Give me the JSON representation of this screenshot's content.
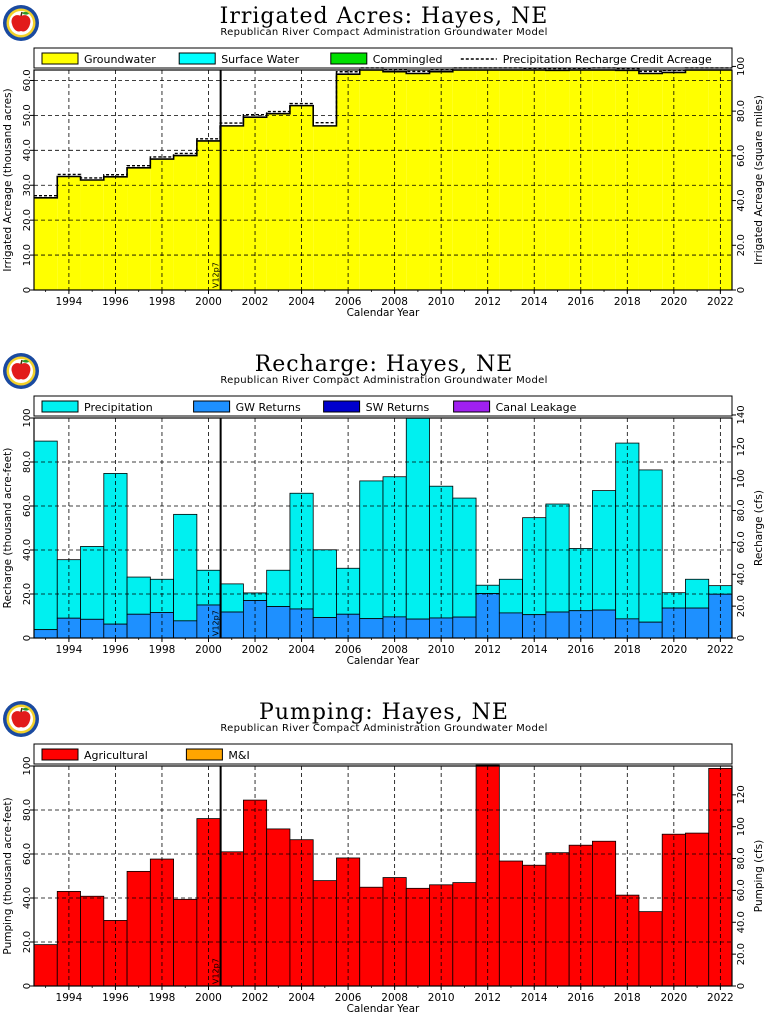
{
  "colors": {
    "groundwater": "#ffff00",
    "surface_water": "#00ffff",
    "commingled": "#00e000",
    "precipitation": "#00f0f0",
    "gw_returns": "#1e90ff",
    "sw_returns": "#0000cd",
    "canal_leakage": "#a020f0",
    "agricultural": "#ff0000",
    "mi": "#ffa500"
  },
  "icons": {
    "logo": "apple-seal-icon"
  },
  "chart_data": [
    {
      "type": "bar",
      "title": "Irrigated Acres: Hayes, NE",
      "subtitle": "Republican River Compact Administration Groundwater Model",
      "xlabel": "Calendar Year",
      "ylabel": "Irrigated Acreage (thousand acres)",
      "ylabel_right": "Irrigated Acreage (square miles)",
      "x_ticks": [
        "1994",
        "1996",
        "1998",
        "2000",
        "2002",
        "2004",
        "2006",
        "2008",
        "2010",
        "2012",
        "2014",
        "2016",
        "2018",
        "2020",
        "2022"
      ],
      "y_ticks": [
        "0",
        "10.0",
        "20.0",
        "30.0",
        "40.0",
        "50.0",
        "60.0"
      ],
      "y_ticks_right": [
        "0",
        "20.0",
        "40.0",
        "60.0",
        "80.0",
        "100"
      ],
      "ylim": [
        0,
        63
      ],
      "ylim_right": [
        0,
        98.4
      ],
      "marker_label": "V12p7",
      "marker_year": 2001,
      "legend": [
        {
          "label": "Groundwater",
          "color": "#ffff00",
          "kind": "box"
        },
        {
          "label": "Surface Water",
          "color": "#00ffff",
          "kind": "box"
        },
        {
          "label": "Commingled",
          "color": "#00e000",
          "kind": "box"
        },
        {
          "label": "Precipitation Recharge Credit Acreage",
          "kind": "dash"
        }
      ],
      "years": [
        1993,
        1994,
        1995,
        1996,
        1997,
        1998,
        1999,
        2000,
        2001,
        2002,
        2003,
        2004,
        2005,
        2006,
        2007,
        2008,
        2009,
        2010,
        2011,
        2012,
        2013,
        2014,
        2015,
        2016,
        2017,
        2018,
        2019,
        2020,
        2021,
        2022
      ],
      "series": [
        {
          "name": "Groundwater",
          "values": [
            26.4,
            32.5,
            31.5,
            32.4,
            35.0,
            37.5,
            38.5,
            42.7,
            47.0,
            49.5,
            50.5,
            52.8,
            47.0,
            61.8,
            63.0,
            62.5,
            62.0,
            62.5,
            63.1,
            63.8,
            63.4,
            63.0,
            62.9,
            63.0,
            63.2,
            62.9,
            62.0,
            62.3,
            63.4,
            63.8
          ]
        },
        {
          "name": "Precipitation Recharge Credit Acreage",
          "values": [
            27.0,
            33.1,
            32.1,
            33.0,
            35.6,
            38.1,
            39.1,
            43.3,
            47.8,
            50.2,
            51.1,
            53.4,
            47.9,
            62.5,
            63.6,
            63.1,
            62.6,
            63.1,
            63.7,
            64.3,
            63.9,
            63.5,
            63.4,
            63.5,
            63.7,
            63.4,
            62.6,
            62.9,
            63.9,
            64.2
          ]
        }
      ]
    },
    {
      "type": "bar",
      "title": "Recharge: Hayes, NE",
      "subtitle": "Republican River Compact Administration Groundwater Model",
      "xlabel": "Calendar Year",
      "ylabel": "Recharge (thousand acre-feet)",
      "ylabel_right": "Recharge (cfs)",
      "x_ticks": [
        "1994",
        "1996",
        "1998",
        "2000",
        "2002",
        "2004",
        "2006",
        "2008",
        "2010",
        "2012",
        "2014",
        "2016",
        "2018",
        "2020",
        "2022"
      ],
      "y_ticks": [
        "0",
        "20.0",
        "40.0",
        "60.0",
        "80.0",
        "100"
      ],
      "y_ticks_right": [
        "0",
        "20.0",
        "40.0",
        "60.0",
        "80.0",
        "100",
        "120",
        "140"
      ],
      "ylim": [
        0,
        100
      ],
      "ylim_right": [
        0,
        138.1
      ],
      "marker_label": "V12p7",
      "marker_year": 2001,
      "legend": [
        {
          "label": "Precipitation",
          "color": "#00f0f0",
          "kind": "box"
        },
        {
          "label": "GW Returns",
          "color": "#1e90ff",
          "kind": "box"
        },
        {
          "label": "SW Returns",
          "color": "#0000cd",
          "kind": "box"
        },
        {
          "label": "Canal Leakage",
          "color": "#a020f0",
          "kind": "box"
        }
      ],
      "years": [
        1993,
        1994,
        1995,
        1996,
        1997,
        1998,
        1999,
        2000,
        2001,
        2002,
        2003,
        2004,
        2005,
        2006,
        2007,
        2008,
        2009,
        2010,
        2011,
        2012,
        2013,
        2014,
        2015,
        2016,
        2017,
        2018,
        2019,
        2020,
        2021,
        2022
      ],
      "series": [
        {
          "name": "GW Returns",
          "values": [
            3.8,
            9.0,
            8.5,
            6.3,
            10.8,
            11.6,
            7.8,
            15.0,
            11.8,
            17.0,
            14.3,
            13.2,
            9.3,
            10.8,
            8.8,
            9.6,
            8.6,
            9.1,
            9.5,
            20.2,
            11.4,
            10.6,
            11.8,
            12.4,
            12.7,
            8.7,
            7.2,
            13.6,
            13.6,
            19.9
          ]
        },
        {
          "name": "Precipitation",
          "values": [
            89.5,
            35.6,
            41.6,
            74.8,
            27.7,
            26.7,
            56.2,
            30.8,
            24.6,
            20.5,
            30.8,
            65.8,
            40.1,
            31.7,
            71.4,
            73.3,
            99.9,
            69.0,
            63.6,
            24.0,
            26.7,
            54.7,
            60.9,
            40.7,
            67.0,
            88.6,
            76.4,
            20.6,
            26.7,
            23.8
          ]
        }
      ]
    },
    {
      "type": "bar",
      "title": "Pumping: Hayes, NE",
      "subtitle": "Republican River Compact Administration Groundwater Model",
      "xlabel": "Calendar Year",
      "ylabel": "Pumping (thousand acre-feet)",
      "ylabel_right": "Pumping (cfs)",
      "x_ticks": [
        "1994",
        "1996",
        "1998",
        "2000",
        "2002",
        "2004",
        "2006",
        "2008",
        "2010",
        "2012",
        "2014",
        "2016",
        "2018",
        "2020",
        "2022"
      ],
      "y_ticks": [
        "0",
        "20.0",
        "40.0",
        "60.0",
        "80.0",
        "100"
      ],
      "y_ticks_right": [
        "0",
        "20.0",
        "40.0",
        "60.0",
        "80.0",
        "100",
        "120"
      ],
      "ylim": [
        0,
        100
      ],
      "ylim_right": [
        0,
        138.1
      ],
      "marker_label": "V12p7",
      "marker_year": 2001,
      "legend": [
        {
          "label": "Agricultural",
          "color": "#ff0000",
          "kind": "box"
        },
        {
          "label": "M&I",
          "color": "#ffa500",
          "kind": "box"
        }
      ],
      "years": [
        1993,
        1994,
        1995,
        1996,
        1997,
        1998,
        1999,
        2000,
        2001,
        2002,
        2003,
        2004,
        2005,
        2006,
        2007,
        2008,
        2009,
        2010,
        2011,
        2012,
        2013,
        2014,
        2015,
        2016,
        2017,
        2018,
        2019,
        2020,
        2021,
        2022
      ],
      "series": [
        {
          "name": "Agricultural",
          "values": [
            18.8,
            43.0,
            40.8,
            29.8,
            52.1,
            57.7,
            39.4,
            76.1,
            61.0,
            84.5,
            71.4,
            66.5,
            47.9,
            58.2,
            44.9,
            49.3,
            44.4,
            46.0,
            47.0,
            100.4,
            56.8,
            54.9,
            60.6,
            64.0,
            65.8,
            41.3,
            33.8,
            69.0,
            69.5,
            98.9
          ]
        }
      ]
    }
  ]
}
